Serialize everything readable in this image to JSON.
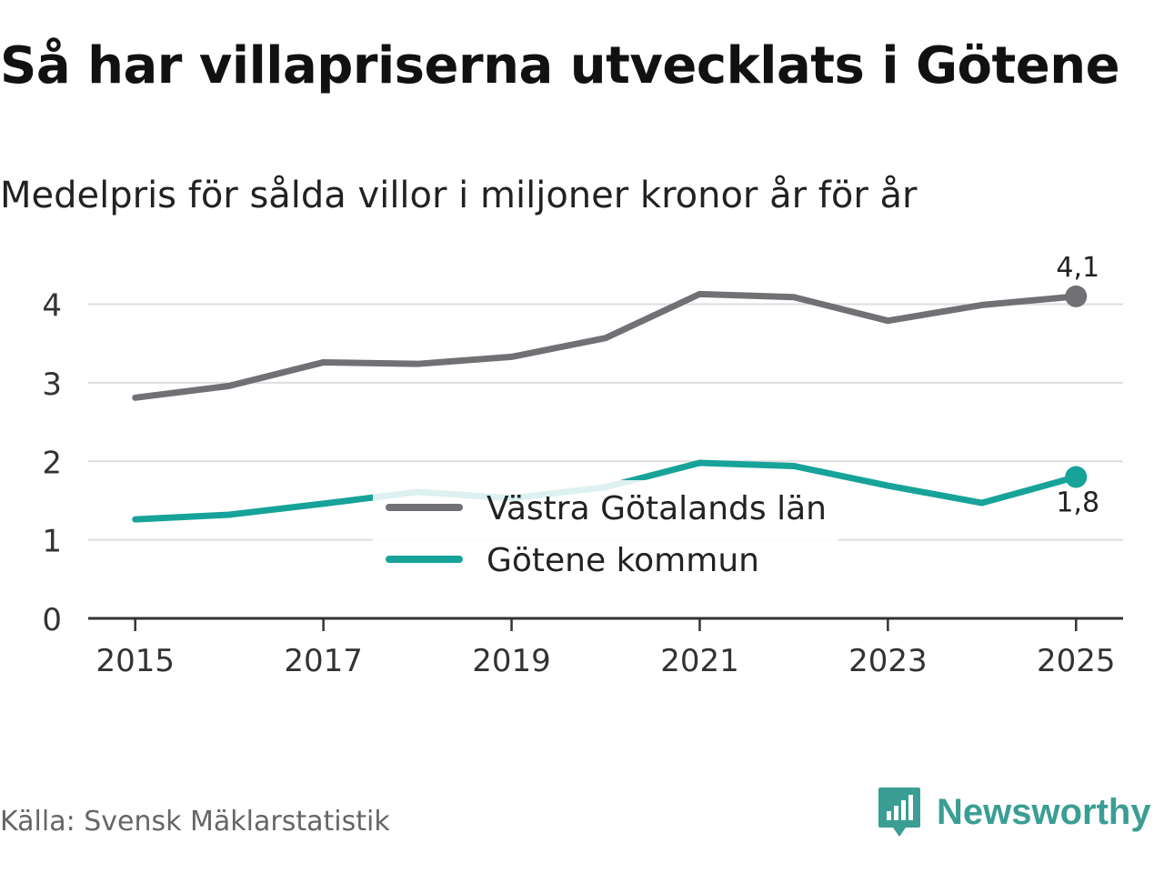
{
  "colors": {
    "lan": "#707075",
    "kommun": "#17a39a",
    "grid": "#dddddd",
    "axis": "#333333",
    "brand": "#3a9e94"
  },
  "chart_data": {
    "type": "line",
    "title": "Så har villapriserna utvecklats i Götene",
    "subtitle": "Medelpris för sålda villor i miljoner kronor år för år",
    "x": [
      2015,
      2016,
      2017,
      2018,
      2019,
      2020,
      2021,
      2022,
      2023,
      2024,
      2025
    ],
    "x_ticks": [
      "2015",
      "2017",
      "2019",
      "2021",
      "2023",
      "2025"
    ],
    "y_ticks": [
      "0",
      "1",
      "2",
      "3",
      "4"
    ],
    "xlim": [
      2014.5,
      2025.5
    ],
    "ylim": [
      0,
      4.4
    ],
    "grid": true,
    "legend_position": "center",
    "series": [
      {
        "name": "Västra Götalands län",
        "color_key": "lan",
        "values": [
          2.81,
          2.96,
          3.26,
          3.24,
          3.33,
          3.57,
          4.13,
          4.09,
          3.79,
          3.99,
          4.1
        ],
        "end_label": "4,1",
        "label_side": "above"
      },
      {
        "name": "Götene kommun",
        "color_key": "kommun",
        "values": [
          1.26,
          1.32,
          1.46,
          1.61,
          1.53,
          1.67,
          1.98,
          1.94,
          1.69,
          1.47,
          1.8
        ],
        "end_label": "1,8",
        "label_side": "below"
      }
    ]
  },
  "source": "Källa: Svensk Mäklarstatistik",
  "brand": {
    "name": "Newsworthy",
    "icon": "newsworthy-logo-icon"
  }
}
